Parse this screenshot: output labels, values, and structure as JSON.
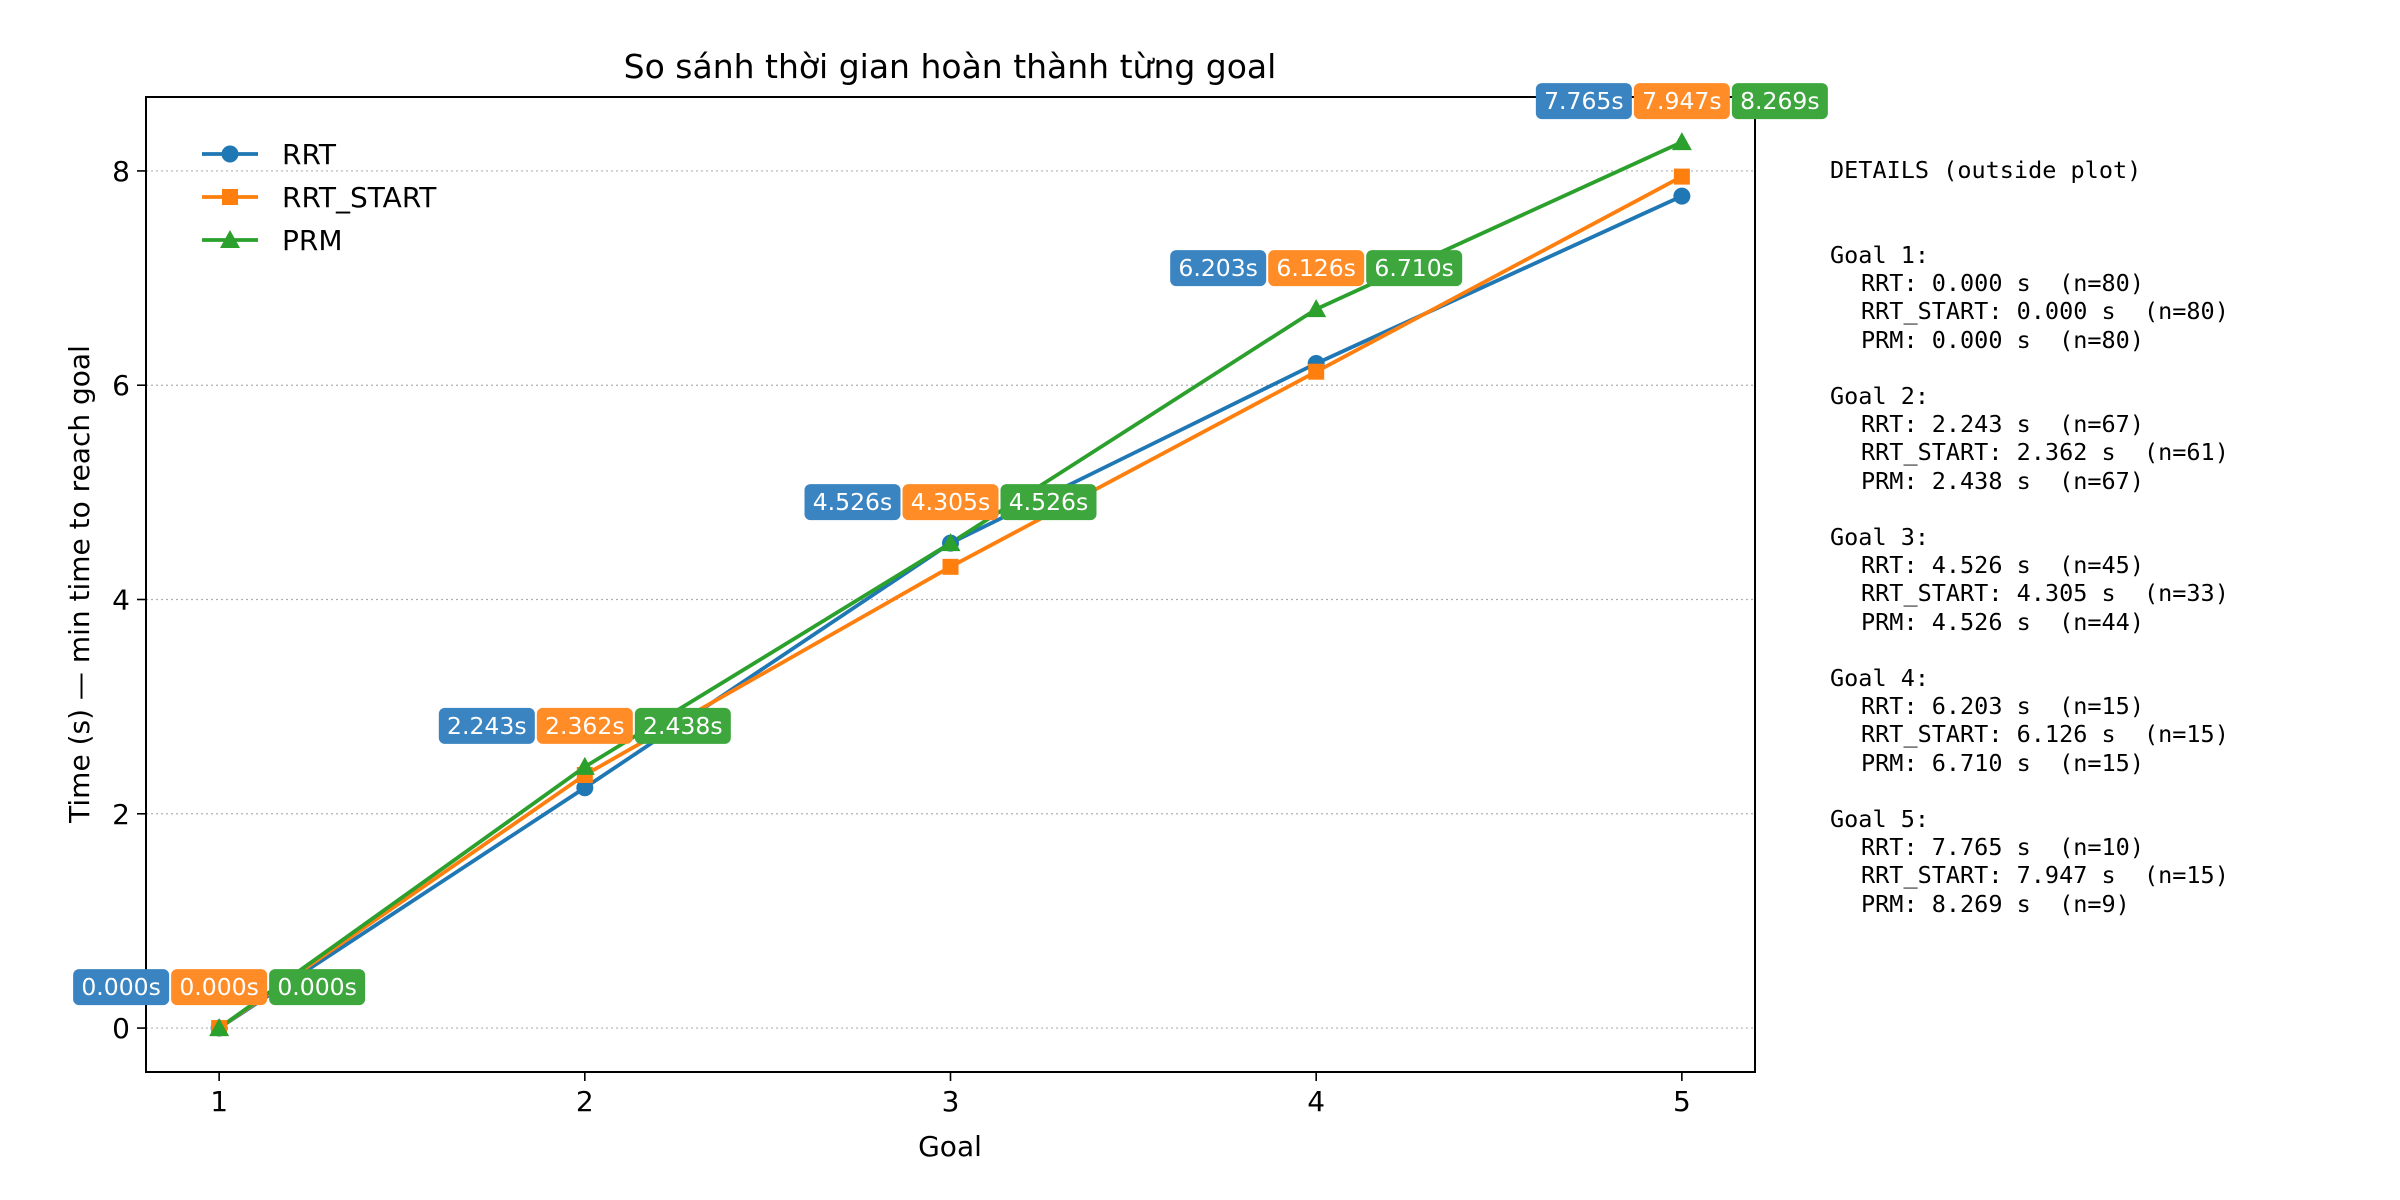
{
  "colors": {
    "RRT": "#1f77b4",
    "RRT_START": "#ff7f0e",
    "PRM": "#2ca02c"
  },
  "chart_data": {
    "type": "line",
    "title": "So sánh thời gian hoàn thành từng goal",
    "xlabel": "Goal",
    "ylabel": "Time (s) — min time to reach goal",
    "x": [
      1,
      2,
      3,
      4,
      5
    ],
    "x_ticks": [
      "1",
      "2",
      "3",
      "4",
      "5"
    ],
    "y_ticks": [
      "0",
      "2",
      "4",
      "6",
      "8"
    ],
    "xlim": [
      0.8,
      5.2
    ],
    "ylim": [
      -0.41,
      8.69
    ],
    "grid": "horizontal dotted",
    "legend_position": "top-left",
    "series": [
      {
        "name": "RRT",
        "marker": "circle",
        "values": [
          0.0,
          2.243,
          4.526,
          6.203,
          7.765
        ],
        "labels": [
          "0.000s",
          "2.243s",
          "4.526s",
          "6.203s",
          "7.765s"
        ]
      },
      {
        "name": "RRT_START",
        "marker": "square",
        "values": [
          0.0,
          2.362,
          4.305,
          6.126,
          7.947
        ],
        "labels": [
          "0.000s",
          "2.362s",
          "4.305s",
          "6.126s",
          "7.947s"
        ]
      },
      {
        "name": "PRM",
        "marker": "triangle",
        "values": [
          0.0,
          2.438,
          4.526,
          6.71,
          8.269
        ],
        "labels": [
          "0.000s",
          "2.438s",
          "4.526s",
          "6.710s",
          "8.269s"
        ]
      }
    ]
  },
  "details": {
    "header": "DETAILS (outside plot)",
    "goals": [
      {
        "title": "Goal 1:",
        "lines": [
          "RRT: 0.000 s  (n=80)",
          "RRT_START: 0.000 s  (n=80)",
          "PRM: 0.000 s  (n=80)"
        ]
      },
      {
        "title": "Goal 2:",
        "lines": [
          "RRT: 2.243 s  (n=67)",
          "RRT_START: 2.362 s  (n=61)",
          "PRM: 2.438 s  (n=67)"
        ]
      },
      {
        "title": "Goal 3:",
        "lines": [
          "RRT: 4.526 s  (n=45)",
          "RRT_START: 4.305 s  (n=33)",
          "PRM: 4.526 s  (n=44)"
        ]
      },
      {
        "title": "Goal 4:",
        "lines": [
          "RRT: 6.203 s  (n=15)",
          "RRT_START: 6.126 s  (n=15)",
          "PRM: 6.710 s  (n=15)"
        ]
      },
      {
        "title": "Goal 5:",
        "lines": [
          "RRT: 7.765 s  (n=10)",
          "RRT_START: 7.947 s  (n=15)",
          "PRM: 8.269 s  (n=9)"
        ]
      }
    ]
  }
}
